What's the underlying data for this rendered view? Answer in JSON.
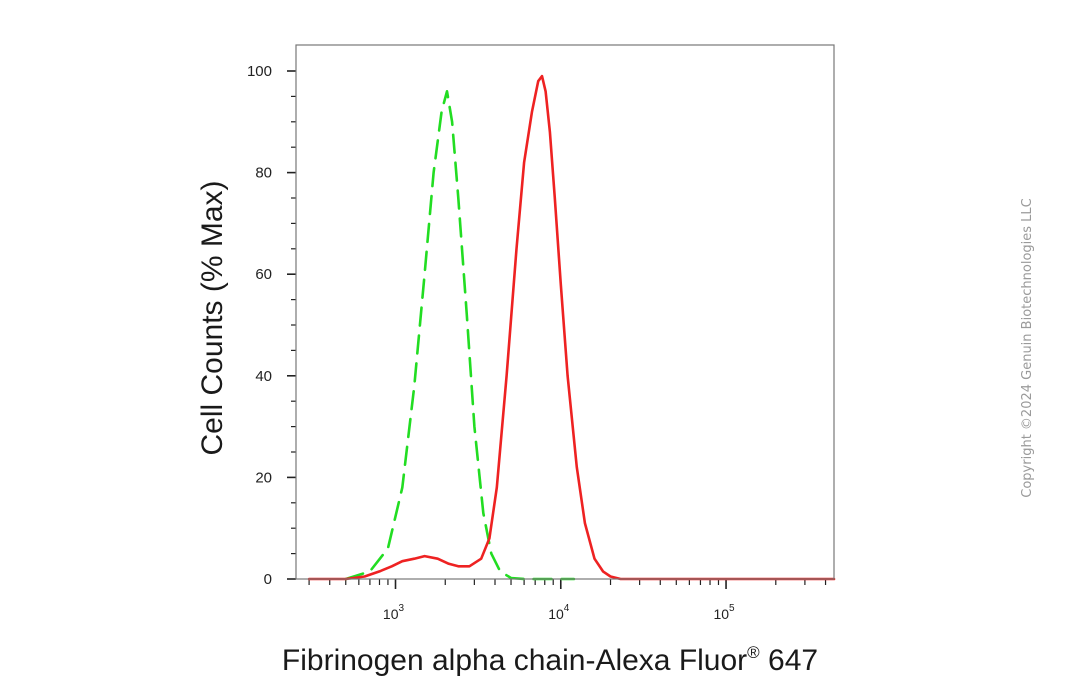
{
  "chart_data": {
    "type": "line",
    "title": "",
    "xlabel": "Fibrinogen alpha chain-Alexa Fluor",
    "xlabel_superscript": "®",
    "xlabel_suffix": " 647",
    "ylabel": "Cell Counts (% Max)",
    "x_scale": "log",
    "xlim": [
      250,
      450000
    ],
    "ylim": [
      0,
      105
    ],
    "y_ticks": [
      0,
      20,
      40,
      60,
      80,
      100
    ],
    "x_ticks": [
      {
        "value": 1000,
        "base": "10",
        "exp": "3"
      },
      {
        "value": 10000,
        "base": "10",
        "exp": "4"
      },
      {
        "value": 100000,
        "base": "10",
        "exp": "5"
      }
    ],
    "grid": false,
    "series": [
      {
        "color": "#22dd22",
        "dash": "dashed",
        "x": [
          500,
          700,
          900,
          1100,
          1300,
          1500,
          1700,
          1900,
          2050,
          2200,
          2400,
          2700,
          3000,
          3400,
          3800,
          4300,
          5000,
          6000,
          8000,
          12000
        ],
        "y": [
          0,
          1.5,
          6,
          18,
          38,
          60,
          80,
          92,
          96,
          90,
          75,
          52,
          30,
          13,
          5,
          1.5,
          0.2,
          0,
          0,
          0
        ]
      },
      {
        "color": "#ee2222",
        "dash": "solid",
        "x": [
          300,
          500,
          650,
          800,
          950,
          1100,
          1300,
          1500,
          1800,
          2100,
          2400,
          2800,
          3300,
          3700,
          4100,
          4700,
          5400,
          6000,
          6700,
          7300,
          7700,
          8100,
          8600,
          9200,
          10000,
          11000,
          12500,
          14000,
          16000,
          18000,
          20000,
          23000,
          30000,
          60000,
          200000,
          450000
        ],
        "y": [
          0,
          0,
          0.5,
          1.5,
          2.5,
          3.5,
          4,
          4.5,
          4,
          3,
          2.5,
          2.5,
          4,
          8,
          18,
          40,
          65,
          82,
          92,
          98,
          99,
          96,
          88,
          75,
          58,
          40,
          22,
          11,
          4,
          1.5,
          0.5,
          0,
          0,
          0,
          0,
          0
        ]
      }
    ]
  },
  "watermark": "Copyright ©2024 Genuin Biotechnologies LLC"
}
